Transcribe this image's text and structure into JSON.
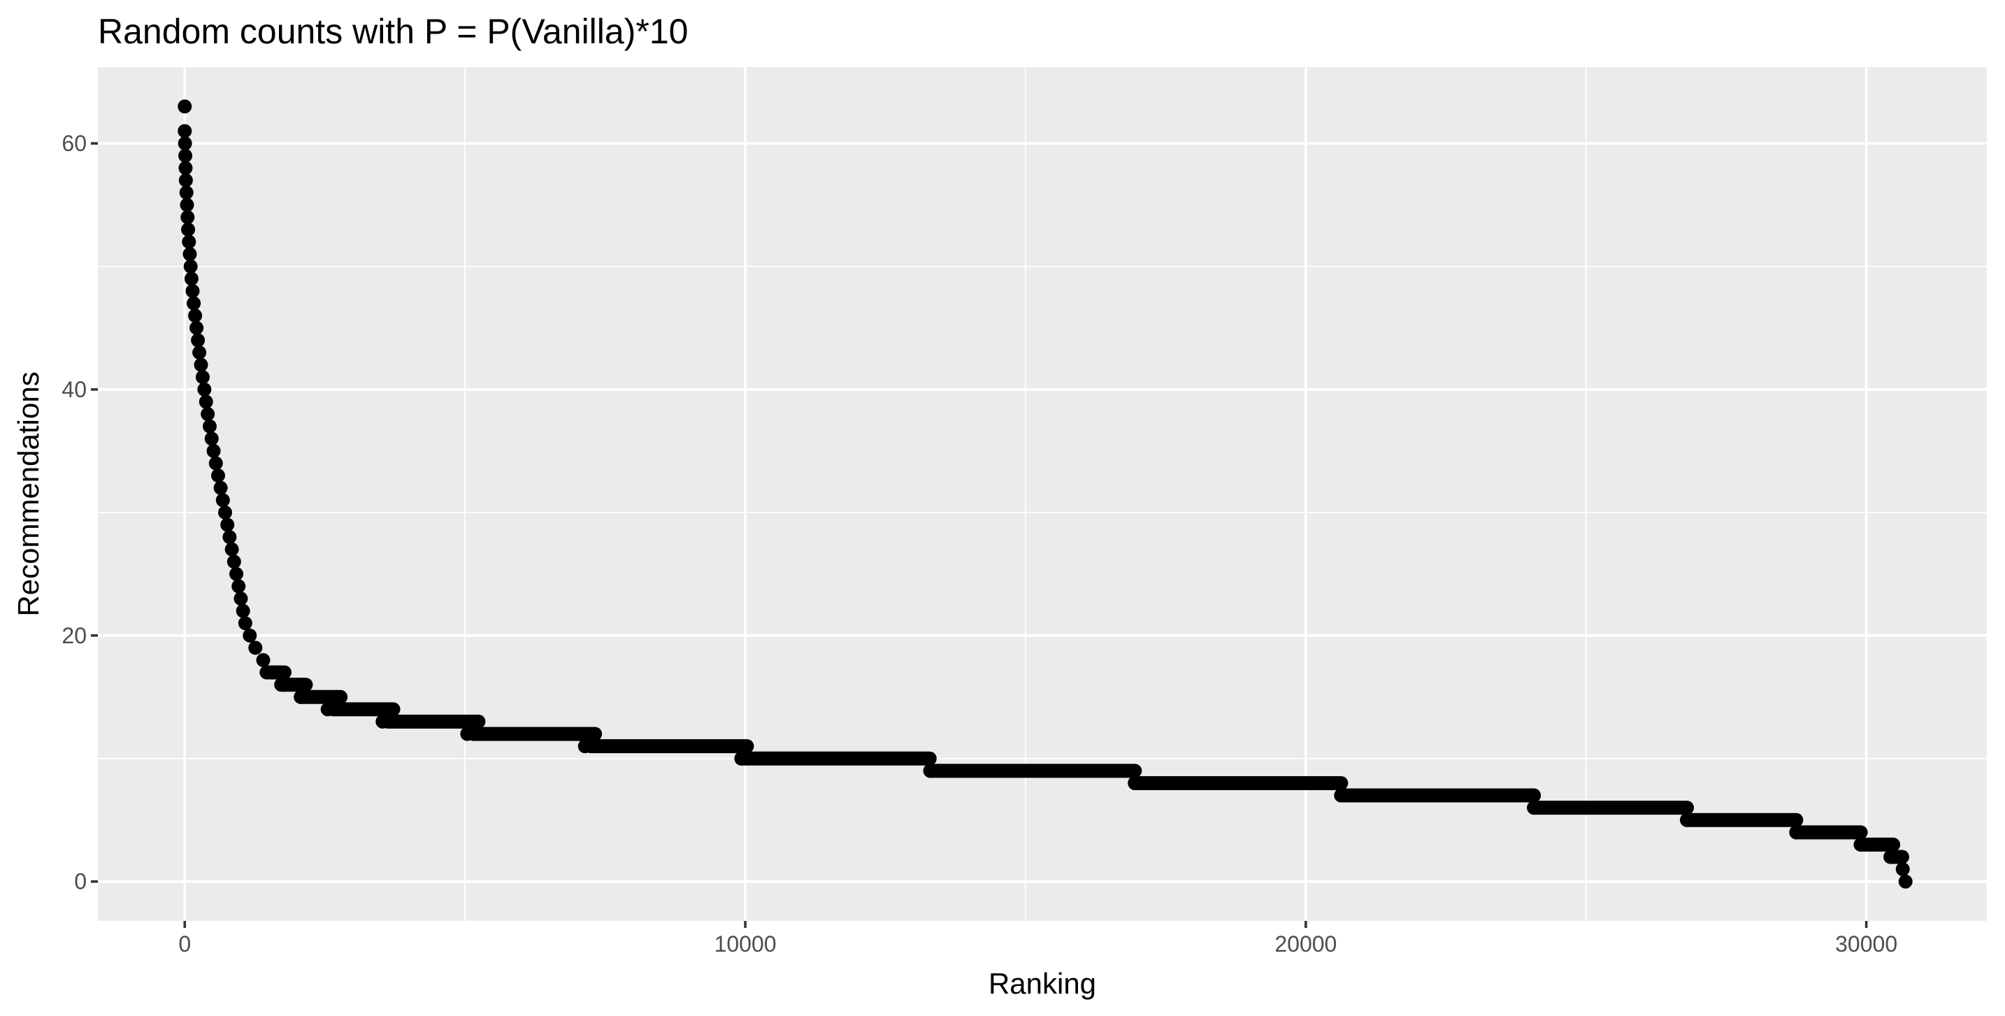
{
  "chart_data": {
    "type": "scatter",
    "title": "Random counts with P = P(Vanilla)*10",
    "xlabel": "Ranking",
    "ylabel": "Recommendations",
    "xlim": [
      -1550,
      32150
    ],
    "ylim": [
      -3.2,
      66.2
    ],
    "x_ticks": [
      0,
      10000,
      20000,
      30000
    ],
    "x_tick_labels": [
      "0",
      "10000",
      "20000",
      "30000"
    ],
    "y_ticks": [
      0,
      20,
      40,
      60
    ],
    "y_tick_labels": [
      "0",
      "20",
      "40",
      "60"
    ],
    "x_minor_breaks": [
      5000,
      15000,
      25000
    ],
    "y_minor_breaks": [
      10,
      30,
      50
    ],
    "grid": true,
    "legend": "none",
    "point_color": "#000000",
    "panel_color": "#ebebeb",
    "series": [
      {
        "points": [
          [
            0,
            63
          ],
          [
            0,
            61
          ],
          [
            5,
            60
          ],
          [
            10,
            59
          ],
          [
            15,
            58
          ],
          [
            20,
            57
          ],
          [
            30,
            56
          ],
          [
            40,
            55
          ],
          [
            50,
            54
          ],
          [
            60,
            53
          ],
          [
            75,
            52
          ],
          [
            90,
            51
          ],
          [
            105,
            50
          ],
          [
            120,
            49
          ],
          [
            140,
            48
          ],
          [
            160,
            47
          ],
          [
            185,
            46
          ],
          [
            210,
            45
          ],
          [
            235,
            44
          ],
          [
            260,
            43
          ],
          [
            290,
            42
          ],
          [
            320,
            41
          ],
          [
            350,
            40
          ],
          [
            380,
            39
          ],
          [
            410,
            38
          ],
          [
            445,
            37
          ],
          [
            480,
            36
          ],
          [
            515,
            35
          ],
          [
            555,
            34
          ],
          [
            595,
            33
          ],
          [
            640,
            32
          ],
          [
            680,
            31
          ],
          [
            720,
            30
          ],
          [
            760,
            29
          ],
          [
            800,
            28
          ],
          [
            840,
            27
          ],
          [
            880,
            26
          ],
          [
            920,
            25
          ],
          [
            960,
            24
          ],
          [
            1000,
            23
          ],
          [
            1040,
            22
          ],
          [
            1080,
            21
          ],
          [
            1160,
            20
          ],
          [
            1260,
            19
          ],
          [
            1400,
            18
          ],
          [
            1560,
            17
          ],
          [
            1760,
            16
          ],
          [
            2070,
            15
          ],
          [
            2550,
            14
          ],
          [
            3530,
            13
          ],
          [
            5040,
            12
          ],
          [
            7140,
            11
          ],
          [
            9930,
            10
          ],
          [
            13300,
            9
          ],
          [
            16950,
            8
          ],
          [
            20630,
            7
          ],
          [
            24070,
            6
          ],
          [
            26800,
            5
          ],
          [
            28750,
            4
          ],
          [
            29900,
            3
          ],
          [
            30450,
            2
          ],
          [
            30650,
            1
          ],
          [
            30700,
            0
          ]
        ],
        "step_runs": [
          {
            "y": 17,
            "x_start": 1460,
            "x_end": 1780
          },
          {
            "y": 16,
            "x_start": 1720,
            "x_end": 2160
          },
          {
            "y": 15,
            "x_start": 2070,
            "x_end": 2780
          },
          {
            "y": 14,
            "x_start": 2650,
            "x_end": 3720
          },
          {
            "y": 13,
            "x_start": 3630,
            "x_end": 5240
          },
          {
            "y": 12,
            "x_start": 5150,
            "x_end": 7320
          },
          {
            "y": 11,
            "x_start": 7240,
            "x_end": 10030
          },
          {
            "y": 10,
            "x_start": 9930,
            "x_end": 13290
          },
          {
            "y": 9,
            "x_start": 13300,
            "x_end": 16950
          },
          {
            "y": 8,
            "x_start": 16950,
            "x_end": 20630
          },
          {
            "y": 7,
            "x_start": 20630,
            "x_end": 24070
          },
          {
            "y": 6,
            "x_start": 24070,
            "x_end": 26800
          },
          {
            "y": 5,
            "x_start": 26800,
            "x_end": 28750
          },
          {
            "y": 4,
            "x_start": 28750,
            "x_end": 29900
          },
          {
            "y": 3,
            "x_start": 29900,
            "x_end": 30480
          },
          {
            "y": 2,
            "x_start": 30430,
            "x_end": 30640
          }
        ]
      }
    ]
  }
}
